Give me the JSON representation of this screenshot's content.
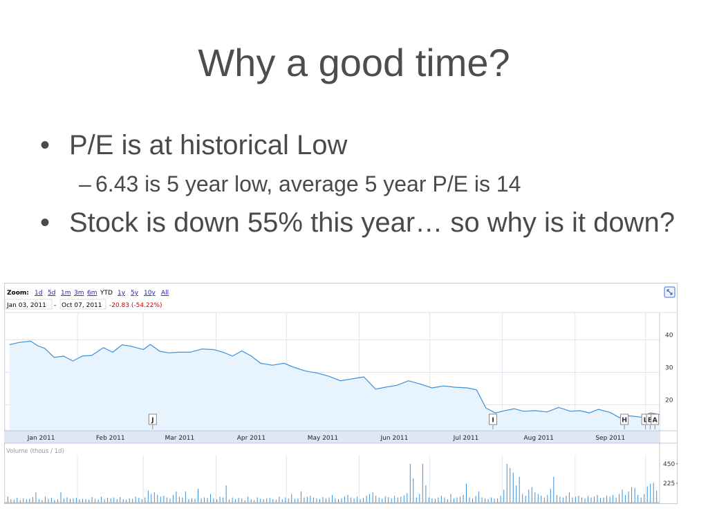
{
  "slide": {
    "title": "Why a good time?",
    "bullets": [
      {
        "text": "P/E is at historical Low",
        "sub": [
          "6.43 is 5 year low, average 5 year P/E is 14"
        ]
      },
      {
        "text": "Stock is down 55% this year… so why is it down?",
        "sub": []
      }
    ],
    "bullet_glyph": "•",
    "sub_glyph": "–"
  },
  "chart_data": {
    "type": "area",
    "toolbar": {
      "zoom_label": "Zoom:",
      "zoom_options": [
        "1d",
        "5d",
        "1m",
        "3m",
        "6m",
        "YTD",
        "1y",
        "5y",
        "10y",
        "All"
      ],
      "selected_zoom": "YTD",
      "range_start": "Jan 03, 2011",
      "range_sep": "-",
      "range_end": "Oct 07, 2011",
      "change": "-20.83 (-54.22%)",
      "expand_icon": "expand-icon"
    },
    "price": {
      "ylim": [
        12,
        48
      ],
      "yticks": [
        20,
        30,
        40
      ],
      "x": [
        "2011-01-03",
        "2011-01-07",
        "2011-01-12",
        "2011-01-15",
        "2011-01-18",
        "2011-01-22",
        "2011-01-26",
        "2011-01-30",
        "2011-02-03",
        "2011-02-07",
        "2011-02-12",
        "2011-02-16",
        "2011-02-20",
        "2011-02-24",
        "2011-03-01",
        "2011-03-04",
        "2011-03-08",
        "2011-03-12",
        "2011-03-16",
        "2011-03-21",
        "2011-03-26",
        "2011-03-31",
        "2011-04-04",
        "2011-04-08",
        "2011-04-12",
        "2011-04-16",
        "2011-04-20",
        "2011-04-25",
        "2011-04-30",
        "2011-05-04",
        "2011-05-09",
        "2011-05-14",
        "2011-05-19",
        "2011-05-24",
        "2011-05-29",
        "2011-06-03",
        "2011-06-08",
        "2011-06-12",
        "2011-06-17",
        "2011-06-22",
        "2011-06-27",
        "2011-07-02",
        "2011-07-07",
        "2011-07-12",
        "2011-07-17",
        "2011-07-21",
        "2011-07-25",
        "2011-07-29",
        "2011-08-02",
        "2011-08-06",
        "2011-08-10",
        "2011-08-15",
        "2011-08-20",
        "2011-08-25",
        "2011-08-30",
        "2011-09-03",
        "2011-09-07",
        "2011-09-11",
        "2011-09-16",
        "2011-09-20",
        "2011-09-24",
        "2011-09-29",
        "2011-10-03",
        "2011-10-07"
      ],
      "values": [
        38.5,
        39.2,
        39.6,
        38.2,
        37.4,
        34.6,
        35.0,
        33.5,
        35.0,
        35.2,
        37.6,
        36.2,
        38.5,
        38.0,
        37.0,
        38.6,
        36.5,
        36.0,
        36.2,
        36.2,
        37.2,
        37.0,
        36.2,
        35.0,
        36.6,
        35.0,
        32.8,
        32.2,
        32.8,
        31.6,
        30.4,
        29.8,
        28.8,
        27.4,
        28.0,
        28.6,
        24.8,
        25.4,
        26.0,
        27.4,
        26.4,
        25.2,
        25.8,
        25.4,
        25.2,
        24.6,
        19.0,
        17.5,
        18.2,
        18.8,
        18.0,
        18.2,
        17.8,
        19.2,
        18.0,
        18.2,
        17.5,
        18.6,
        17.6,
        16.0,
        16.6,
        16.2,
        17.5,
        17.0
      ],
      "annotations": [
        {
          "label": "J",
          "x": "2011-03-05"
        },
        {
          "label": "I",
          "x": "2011-07-28"
        },
        {
          "label": "H",
          "x": "2011-09-22"
        },
        {
          "label": "L",
          "x": "2011-10-01"
        },
        {
          "label": "B",
          "x": "2011-10-03"
        },
        {
          "label": "A",
          "x": "2011-10-05"
        }
      ]
    },
    "xaxis": {
      "start": "2011-01-01",
      "end": "2011-10-07",
      "months": [
        "2011-01-01",
        "2011-02-01",
        "2011-03-01",
        "2011-04-01",
        "2011-05-01",
        "2011-06-01",
        "2011-07-01",
        "2011-08-01",
        "2011-09-01",
        "2011-10-01"
      ],
      "labels": [
        "Jan 2011",
        "Feb 2011",
        "Mar 2011",
        "Apr 2011",
        "May 2011",
        "Jun 2011",
        "Jul 2011",
        "Aug 2011",
        "Sep 2011",
        ""
      ]
    },
    "volume": {
      "label": "Volume (thous / 1d)",
      "ylim": [
        0,
        520
      ],
      "yticks": [
        225,
        450
      ],
      "values": [
        70,
        40,
        35,
        55,
        30,
        50,
        40,
        45,
        65,
        120,
        40,
        30,
        70,
        45,
        55,
        30,
        40,
        120,
        50,
        60,
        45,
        50,
        55,
        40,
        45,
        40,
        35,
        65,
        45,
        35,
        70,
        40,
        55,
        50,
        60,
        40,
        65,
        40,
        35,
        50,
        45,
        70,
        55,
        40,
        60,
        140,
        100,
        120,
        90,
        70,
        80,
        60,
        50,
        90,
        130,
        70,
        60,
        130,
        40,
        50,
        45,
        160,
        50,
        60,
        55,
        100,
        50,
        40,
        70,
        60,
        200,
        35,
        60,
        40,
        55,
        50,
        30,
        70,
        40,
        30,
        60,
        45,
        40,
        50,
        55,
        40,
        35,
        70,
        40,
        60,
        50,
        100,
        45,
        50,
        130,
        60,
        70,
        80,
        60,
        50,
        40,
        65,
        50,
        60,
        90,
        50,
        40,
        50,
        70,
        90,
        60,
        50,
        70,
        40,
        55,
        80,
        100,
        120,
        80,
        60,
        45,
        75,
        65,
        50,
        80,
        60,
        70,
        85,
        110,
        450,
        280,
        60,
        100,
        450,
        200,
        60,
        50,
        45,
        60,
        80,
        60,
        40,
        100,
        50,
        60,
        70,
        90,
        220,
        60,
        50,
        80,
        130,
        60,
        50,
        40,
        60,
        45,
        50,
        80,
        150,
        450,
        400,
        350,
        200,
        300,
        100,
        80,
        150,
        180,
        120,
        100,
        80,
        60,
        90,
        160,
        300,
        90,
        70,
        60,
        80,
        120,
        60,
        70,
        80,
        60,
        50,
        75,
        60,
        70,
        90,
        55,
        60,
        80,
        70,
        90,
        60,
        100,
        150,
        90,
        130,
        180,
        170,
        90,
        60,
        100,
        190,
        220,
        230,
        140
      ]
    }
  }
}
